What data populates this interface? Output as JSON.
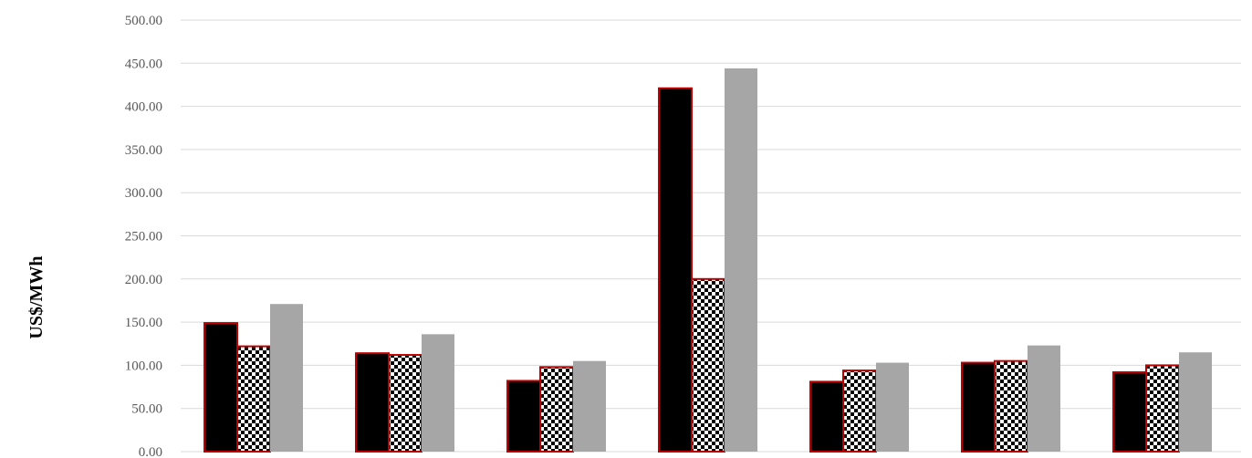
{
  "chart_data": {
    "type": "bar",
    "title": "",
    "xlabel": "",
    "ylabel": "US$/MWh",
    "ylim": [
      0,
      500
    ],
    "ytick_labels": [
      "0.00",
      "50.00",
      "100.00",
      "150.00",
      "200.00",
      "250.00",
      "300.00",
      "350.00",
      "400.00",
      "450.00",
      "500.00"
    ],
    "grid": true,
    "legend": "none",
    "categories": [
      "",
      "",
      "",
      "",
      "",
      "",
      ""
    ],
    "series": [
      {
        "style": "solid-black",
        "fill": "#000000",
        "edge": "#c00000",
        "values": [
          149,
          114,
          82,
          421,
          81,
          103,
          92
        ]
      },
      {
        "style": "checkerboard",
        "fill": "#000000",
        "edge": "#c00000",
        "values": [
          122,
          112,
          98,
          200,
          94,
          105,
          100
        ]
      },
      {
        "style": "solid-gray",
        "fill": "#a6a6a6",
        "edge": "#a6a6a6",
        "values": [
          171,
          136,
          105,
          444,
          103,
          123,
          115
        ]
      }
    ]
  }
}
